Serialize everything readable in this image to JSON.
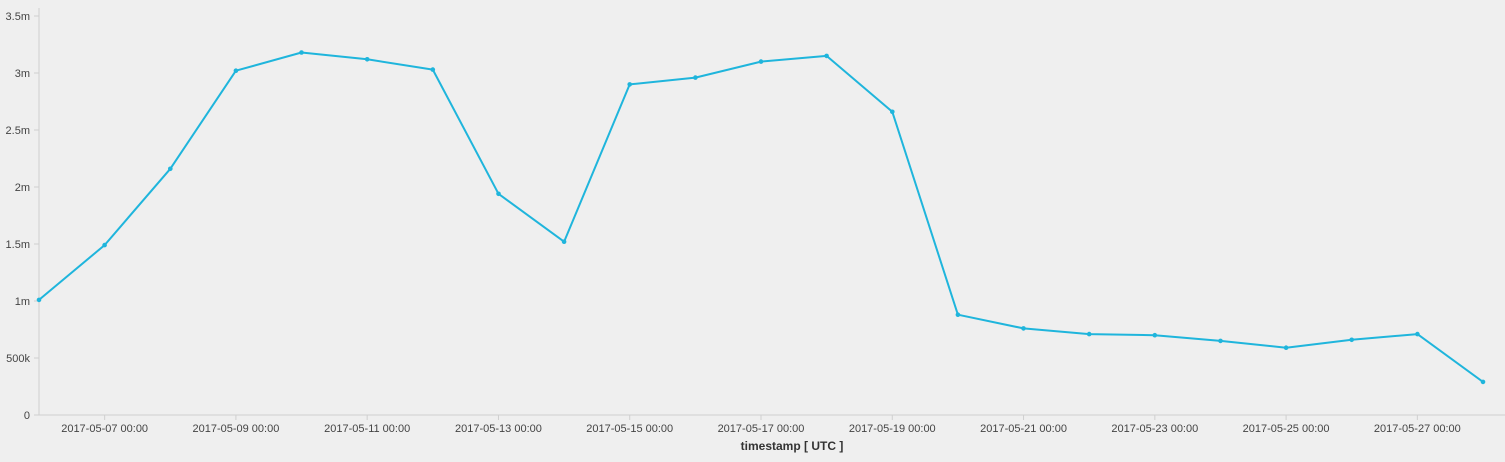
{
  "chart_data": {
    "type": "line",
    "xlabel": "timestamp [ UTC ]",
    "ylabel": "",
    "x": [
      "2017-05-06",
      "2017-05-07",
      "2017-05-08",
      "2017-05-09",
      "2017-05-10",
      "2017-05-11",
      "2017-05-12",
      "2017-05-13",
      "2017-05-14",
      "2017-05-15",
      "2017-05-16",
      "2017-05-17",
      "2017-05-18",
      "2017-05-19",
      "2017-05-20",
      "2017-05-21",
      "2017-05-22",
      "2017-05-23",
      "2017-05-24",
      "2017-05-25",
      "2017-05-26",
      "2017-05-27",
      "2017-05-28"
    ],
    "series": [
      {
        "values": [
          1010000,
          1490000,
          2160000,
          3020000,
          3180000,
          3120000,
          3030000,
          1940000,
          1520000,
          2900000,
          2960000,
          3100000,
          3150000,
          2660000,
          880000,
          760000,
          710000,
          700000,
          650000,
          590000,
          660000,
          710000,
          290000
        ]
      }
    ],
    "ylim": [
      0,
      3500000
    ],
    "xlim": [
      "2017-05-06",
      "2017-05-28"
    ],
    "y_ticks": [
      {
        "value": 0,
        "label": "0"
      },
      {
        "value": 500000,
        "label": "500k"
      },
      {
        "value": 1000000,
        "label": "1m"
      },
      {
        "value": 1500000,
        "label": "1.5m"
      },
      {
        "value": 2000000,
        "label": "2m"
      },
      {
        "value": 2500000,
        "label": "2.5m"
      },
      {
        "value": 3000000,
        "label": "3m"
      },
      {
        "value": 3500000,
        "label": "3.5m"
      }
    ],
    "x_ticks": [
      {
        "value": "2017-05-07",
        "label": "2017-05-07 00:00"
      },
      {
        "value": "2017-05-09",
        "label": "2017-05-09 00:00"
      },
      {
        "value": "2017-05-11",
        "label": "2017-05-11 00:00"
      },
      {
        "value": "2017-05-13",
        "label": "2017-05-13 00:00"
      },
      {
        "value": "2017-05-15",
        "label": "2017-05-15 00:00"
      },
      {
        "value": "2017-05-17",
        "label": "2017-05-17 00:00"
      },
      {
        "value": "2017-05-19",
        "label": "2017-05-19 00:00"
      },
      {
        "value": "2017-05-21",
        "label": "2017-05-21 00:00"
      },
      {
        "value": "2017-05-23",
        "label": "2017-05-23 00:00"
      },
      {
        "value": "2017-05-25",
        "label": "2017-05-25 00:00"
      },
      {
        "value": "2017-05-27",
        "label": "2017-05-27 00:00"
      }
    ],
    "grid": false,
    "colors": {
      "line": "#1fb5dc",
      "axis": "#cfcfcf",
      "background": "#efefef"
    }
  }
}
